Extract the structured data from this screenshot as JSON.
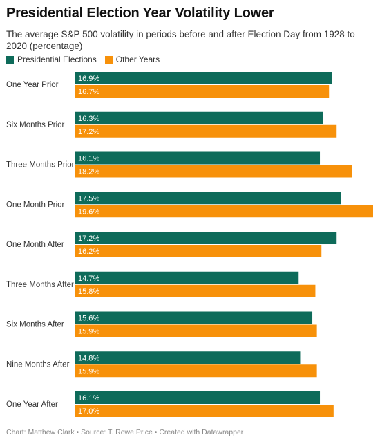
{
  "colors": {
    "presidential": "#0e6b5a",
    "other": "#f7910a",
    "bar_label": "#ffffff"
  },
  "title": "Presidential Election Year Volatility Lower",
  "subtitle": "The average S&P 500 volatility in periods before and after Election Day from 1928 to 2020 (percentage)",
  "footer": "Chart: Matthew Clark • Source: T. Rowe Price • Created with Datawrapper",
  "chart_data": {
    "type": "bar",
    "orientation": "horizontal",
    "title": "Presidential Election Year Volatility Lower",
    "subtitle": "The average S&P 500 volatility in periods before and after Election Day from 1928 to 2020 (percentage)",
    "legend_placement": "top-left",
    "grid": false,
    "xlim": [
      0,
      19.6
    ],
    "categories": [
      "One Year Prior",
      "Six Months Prior",
      "Three Months Prior",
      "One Month Prior",
      "One Month After",
      "Three Months After",
      "Six Months After",
      "Nine Months After",
      "One Year After"
    ],
    "series": [
      {
        "name": "Presidential Elections",
        "values": [
          16.9,
          16.3,
          16.1,
          17.5,
          17.2,
          14.7,
          15.6,
          14.8,
          16.1
        ],
        "labels": [
          "16.9%",
          "16.3%",
          "16.1%",
          "17.5%",
          "17.2%",
          "14.7%",
          "15.6%",
          "14.8%",
          "16.1%"
        ]
      },
      {
        "name": "Other Years",
        "values": [
          16.7,
          17.2,
          18.2,
          19.6,
          16.2,
          15.8,
          15.9,
          15.9,
          17.0
        ],
        "labels": [
          "16.7%",
          "17.2%",
          "18.2%",
          "19.6%",
          "16.2%",
          "15.8%",
          "15.9%",
          "15.9%",
          "17.0%"
        ]
      }
    ]
  }
}
